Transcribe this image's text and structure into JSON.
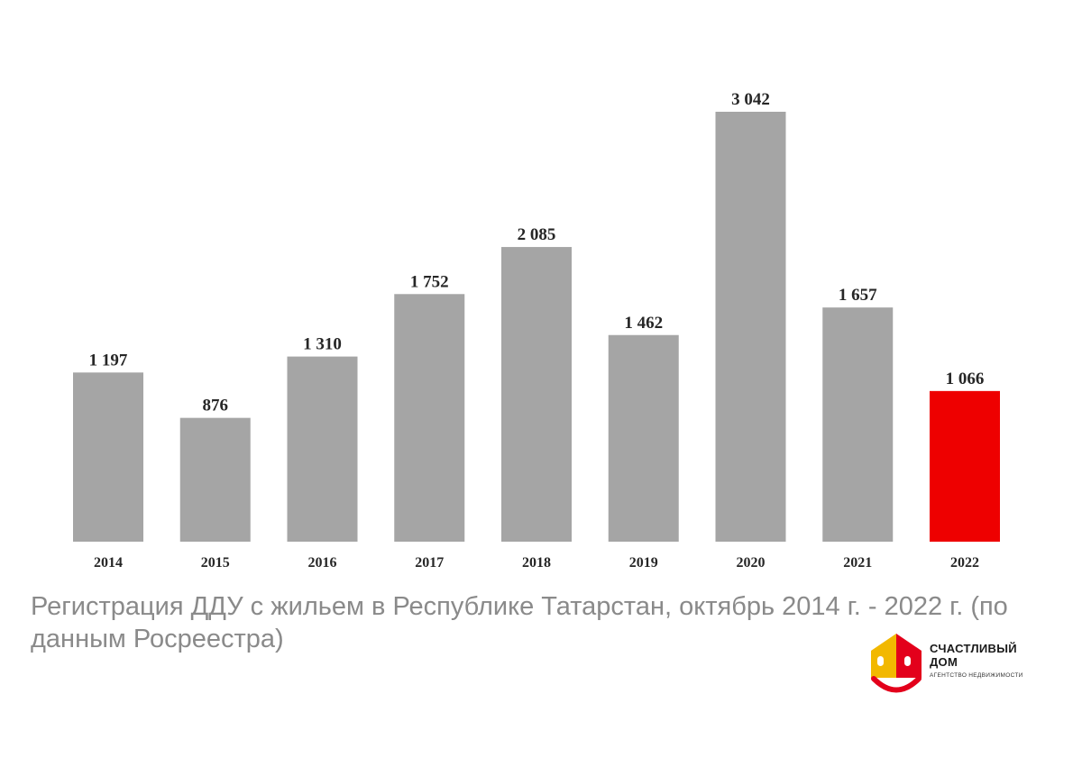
{
  "chart_data": {
    "type": "bar",
    "categories": [
      "2014",
      "2015",
      "2016",
      "2017",
      "2018",
      "2019",
      "2020",
      "2021",
      "2022"
    ],
    "values": [
      1197,
      876,
      1310,
      1752,
      2085,
      1462,
      3042,
      1657,
      1066
    ],
    "value_labels": [
      "1 197",
      "876",
      "1 310",
      "1 752",
      "2 085",
      "1 462",
      "3 042",
      "1 657",
      "1 066"
    ],
    "highlight_index": 8,
    "colors": {
      "bar": "#a5a5a5",
      "highlight": "#ee0000"
    },
    "title": "",
    "xlabel": "",
    "ylabel": "",
    "ylim": [
      0,
      3042
    ],
    "grid": false,
    "legend": "none"
  },
  "caption": "Регистрация ДДУ с жильем в Республике Татарстан, октябрь 2014 г. - 2022 г. (по данным Росреестра)",
  "logo": {
    "line1": "СЧАСТЛИВЫЙ",
    "line2": "ДОМ",
    "sub": "АГЕНТСТВО НЕДВИЖИМОСТИ",
    "colors": {
      "left": "#f2b800",
      "right": "#e3001b",
      "smile": "#e3001b"
    }
  }
}
